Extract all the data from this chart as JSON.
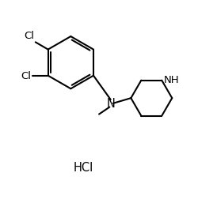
{
  "background_color": "#ffffff",
  "line_color": "#000000",
  "line_width": 1.5,
  "font_size": 9.5,
  "hcl_text": "HCl",
  "cl_label": "Cl",
  "n_label": "N",
  "nh_label": "NH",
  "figsize": [
    2.74,
    2.53
  ],
  "dpi": 100,
  "xlim": [
    0,
    10
  ],
  "ylim": [
    0,
    9.5
  ]
}
